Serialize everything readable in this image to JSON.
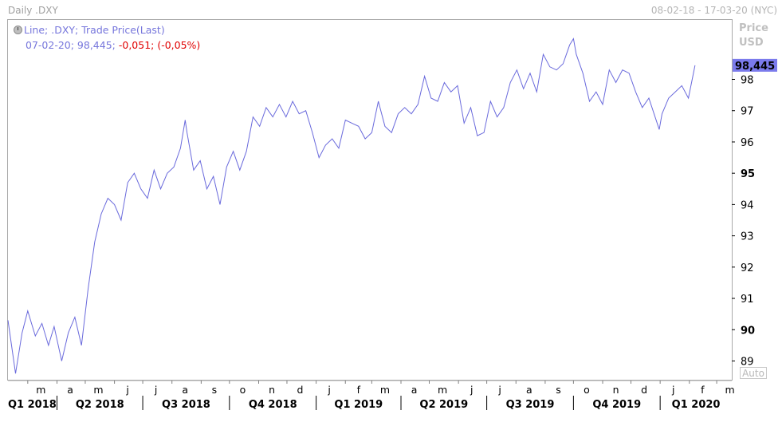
{
  "header": {
    "title": "Daily .DXY",
    "date_range": "08-02-18 - 17-03-20 (NYC)"
  },
  "legend": {
    "line1": "Line; .DXY; Trade Price(Last)",
    "line2_prefix": "07-02-20; 98,445; ",
    "line2_change": "-0,051; (-0,05%)"
  },
  "axis": {
    "price_label": "Price",
    "currency_label": "USD",
    "last_value_label": "98,445",
    "auto_button": "Auto"
  },
  "colors": {
    "series_line": "#6a6adc",
    "last_value_badge": "#7b7bec",
    "negative_change": "#e00000"
  },
  "chart_data": {
    "type": "line",
    "series_name": ".DXY",
    "ylim": [
      88.4,
      99.9
    ],
    "y_ticks": [
      89,
      90,
      91,
      92,
      93,
      94,
      95,
      96,
      97,
      98
    ],
    "y_tick_labels": [
      "89",
      "90",
      "91",
      "92",
      "93",
      "94",
      "95",
      "96",
      "97",
      "98"
    ],
    "bold_ticks": [
      "90",
      "95"
    ],
    "month_labels": [
      "m",
      "a",
      "m",
      "j",
      "j",
      "a",
      "s",
      "o",
      "n",
      "d",
      "j",
      "f",
      "m",
      "a",
      "m",
      "j",
      "j",
      "a",
      "s",
      "o",
      "n",
      "d",
      "j",
      "f",
      "m"
    ],
    "quarter_labels": [
      "Q1 2018",
      "Q2 2018",
      "Q3 2018",
      "Q4 2018",
      "Q1 2019",
      "Q2 2019",
      "Q3 2019",
      "Q4 2019",
      "Q1 2020"
    ],
    "x": [
      "2018-02-08",
      "2018-02-16",
      "2018-02-23",
      "2018-03-01",
      "2018-03-09",
      "2018-03-16",
      "2018-03-23",
      "2018-03-29",
      "2018-04-06",
      "2018-04-13",
      "2018-04-20",
      "2018-04-27",
      "2018-05-04",
      "2018-05-11",
      "2018-05-18",
      "2018-05-25",
      "2018-06-01",
      "2018-06-08",
      "2018-06-15",
      "2018-06-22",
      "2018-06-29",
      "2018-07-06",
      "2018-07-13",
      "2018-07-20",
      "2018-07-27",
      "2018-08-03",
      "2018-08-10",
      "2018-08-15",
      "2018-08-17",
      "2018-08-24",
      "2018-08-31",
      "2018-09-07",
      "2018-09-14",
      "2018-09-21",
      "2018-09-28",
      "2018-10-05",
      "2018-10-12",
      "2018-10-19",
      "2018-10-26",
      "2018-11-02",
      "2018-11-09",
      "2018-11-16",
      "2018-11-23",
      "2018-11-30",
      "2018-12-07",
      "2018-12-14",
      "2018-12-21",
      "2018-12-28",
      "2019-01-04",
      "2019-01-11",
      "2019-01-18",
      "2019-01-25",
      "2019-02-01",
      "2019-02-08",
      "2019-02-15",
      "2019-02-22",
      "2019-03-01",
      "2019-03-08",
      "2019-03-15",
      "2019-03-22",
      "2019-03-29",
      "2019-04-05",
      "2019-04-12",
      "2019-04-19",
      "2019-04-26",
      "2019-05-03",
      "2019-05-10",
      "2019-05-17",
      "2019-05-24",
      "2019-05-31",
      "2019-06-07",
      "2019-06-14",
      "2019-06-21",
      "2019-06-28",
      "2019-07-05",
      "2019-07-12",
      "2019-07-19",
      "2019-07-26",
      "2019-08-02",
      "2019-08-09",
      "2019-08-16",
      "2019-08-23",
      "2019-08-30",
      "2019-09-06",
      "2019-09-13",
      "2019-09-20",
      "2019-09-27",
      "2019-10-01",
      "2019-10-04",
      "2019-10-11",
      "2019-10-18",
      "2019-10-25",
      "2019-11-01",
      "2019-11-08",
      "2019-11-15",
      "2019-11-22",
      "2019-11-29",
      "2019-12-06",
      "2019-12-13",
      "2019-12-20",
      "2019-12-31",
      "2020-01-03",
      "2020-01-10",
      "2020-01-17",
      "2020-01-24",
      "2020-01-31",
      "2020-02-07"
    ],
    "values": [
      90.3,
      88.6,
      89.9,
      90.6,
      89.8,
      90.2,
      89.5,
      90.1,
      89.0,
      89.9,
      90.4,
      89.5,
      91.3,
      92.8,
      93.7,
      94.2,
      94.0,
      93.5,
      94.7,
      95.0,
      94.5,
      94.2,
      95.1,
      94.5,
      95.0,
      95.2,
      95.8,
      96.7,
      96.3,
      95.1,
      95.4,
      94.5,
      94.9,
      94.0,
      95.2,
      95.7,
      95.1,
      95.7,
      96.8,
      96.5,
      97.1,
      96.8,
      97.2,
      96.8,
      97.3,
      96.9,
      97.0,
      96.3,
      95.5,
      95.9,
      96.1,
      95.8,
      96.7,
      96.6,
      96.5,
      96.1,
      96.3,
      97.3,
      96.5,
      96.3,
      96.9,
      97.1,
      96.9,
      97.2,
      98.1,
      97.4,
      97.3,
      97.9,
      97.6,
      97.8,
      96.6,
      97.1,
      96.2,
      96.3,
      97.3,
      96.8,
      97.1,
      97.9,
      98.3,
      97.7,
      98.2,
      97.6,
      98.8,
      98.4,
      98.3,
      98.5,
      99.1,
      99.3,
      98.8,
      98.2,
      97.3,
      97.6,
      97.2,
      98.3,
      97.9,
      98.3,
      98.2,
      97.6,
      97.1,
      97.4,
      96.4,
      96.9,
      97.4,
      97.6,
      97.8,
      97.4,
      98.45
    ]
  }
}
